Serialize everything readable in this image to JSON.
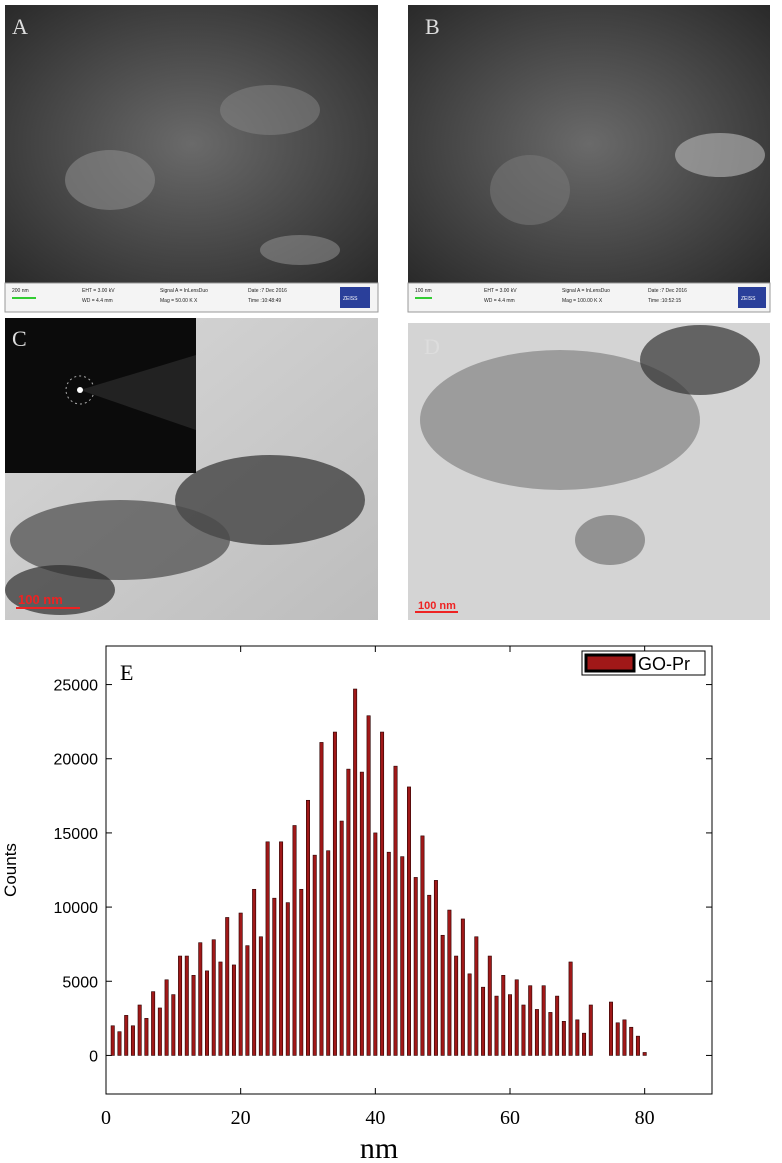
{
  "panels": [
    {
      "label": "A",
      "scale_bar": "200 nm",
      "eht": "EHT = 3.00 kV",
      "wd": "WD = 4.4 mm",
      "signal": "Signal A = InLensDuo",
      "mag": "Mag = 50.00 K X",
      "date": "Date :7 Dec 2016",
      "time": "Time :10:48:49",
      "brand": "ZEISS"
    },
    {
      "label": "B",
      "scale_bar": "100 nm",
      "eht": "EHT = 3.00 kV",
      "wd": "WD = 4.4 mm",
      "signal": "Signal A = InLensDuo",
      "mag": "Mag = 100.00 K X",
      "date": "Date :7 Dec 2016",
      "time": "Time :10:52:15",
      "brand": "ZEISS"
    },
    {
      "label": "C",
      "scale_bar": "100 nm"
    },
    {
      "label": "D",
      "scale_bar": "100 nm"
    }
  ],
  "chart_data": {
    "type": "bar",
    "annotation": "E",
    "xlabel": "nm",
    "ylabel": "Counts",
    "x": [
      1,
      2,
      3,
      4,
      5,
      6,
      7,
      8,
      9,
      10,
      11,
      12,
      13,
      14,
      15,
      16,
      17,
      18,
      19,
      20,
      21,
      22,
      23,
      24,
      25,
      26,
      27,
      28,
      29,
      30,
      31,
      32,
      33,
      34,
      35,
      36,
      37,
      38,
      39,
      40,
      41,
      42,
      43,
      44,
      45,
      46,
      47,
      48,
      49,
      50,
      51,
      52,
      53,
      54,
      55,
      56,
      57,
      58,
      59,
      60,
      61,
      62,
      63,
      64,
      65,
      66,
      67,
      68,
      69,
      70,
      71,
      72,
      73,
      74,
      75,
      76,
      77,
      78,
      79,
      80
    ],
    "series": [
      {
        "name": "GO-Pr",
        "color": "#a01818",
        "values": [
          2000,
          1600,
          2700,
          2000,
          3400,
          2500,
          4300,
          3200,
          5100,
          4100,
          6700,
          6700,
          5400,
          7600,
          5700,
          7800,
          6300,
          9300,
          6100,
          9600,
          7400,
          11200,
          8000,
          14400,
          10600,
          14400,
          10300,
          15500,
          11200,
          17200,
          13500,
          21100,
          13800,
          21800,
          15800,
          19300,
          24700,
          19100,
          22900,
          15000,
          21800,
          13700,
          19500,
          13400,
          18100,
          12000,
          14800,
          10800,
          11800,
          8100,
          9800,
          6700,
          9200,
          5500,
          8000,
          4600,
          6700,
          4000,
          5400,
          4100,
          5100,
          3400,
          4700,
          3100,
          4700,
          2900,
          4000,
          2300,
          6300,
          2400,
          1500,
          3400,
          0,
          0,
          3600,
          2200,
          2400,
          1900,
          1300,
          200
        ]
      }
    ],
    "xlim": [
      0,
      90
    ],
    "xticks": [
      0,
      20,
      40,
      60,
      80
    ],
    "ylim": [
      -2600,
      27600
    ],
    "yticks": [
      0,
      5000,
      10000,
      15000,
      20000,
      25000
    ],
    "legend": "top-right"
  }
}
